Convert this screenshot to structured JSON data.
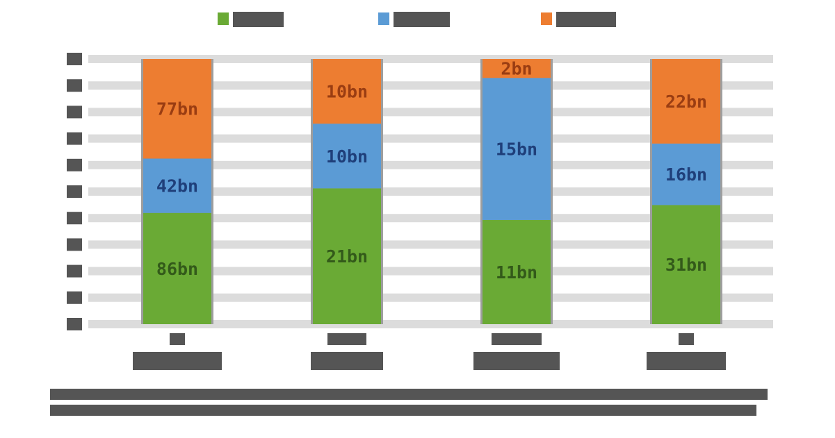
{
  "chart_data": {
    "type": "bar",
    "stacked": true,
    "categories": [
      "",
      "",
      "",
      ""
    ],
    "series": [
      {
        "name": "",
        "color": "#6aaa35",
        "label_color": "#335a1a",
        "values": [
          86,
          21,
          11,
          31
        ],
        "labels": [
          "86bn",
          "21bn",
          "11bn",
          "31bn"
        ]
      },
      {
        "name": "",
        "color": "#5b9bd5",
        "label_color": "#1f3f7a",
        "values": [
          42,
          10,
          15,
          16
        ],
        "labels": [
          "42bn",
          "10bn",
          "15bn",
          "16bn"
        ]
      },
      {
        "name": "",
        "color": "#ed7d31",
        "label_color": "#9a3d12",
        "values": [
          77,
          10,
          2,
          22
        ],
        "labels": [
          "77bn",
          "10bn",
          "2bn",
          "22bn"
        ]
      }
    ],
    "normalized": true,
    "ylim": [
      0,
      100
    ],
    "grid": true,
    "legend": "top",
    "title": "",
    "xlabel": "",
    "ylabel": "",
    "note": ""
  }
}
